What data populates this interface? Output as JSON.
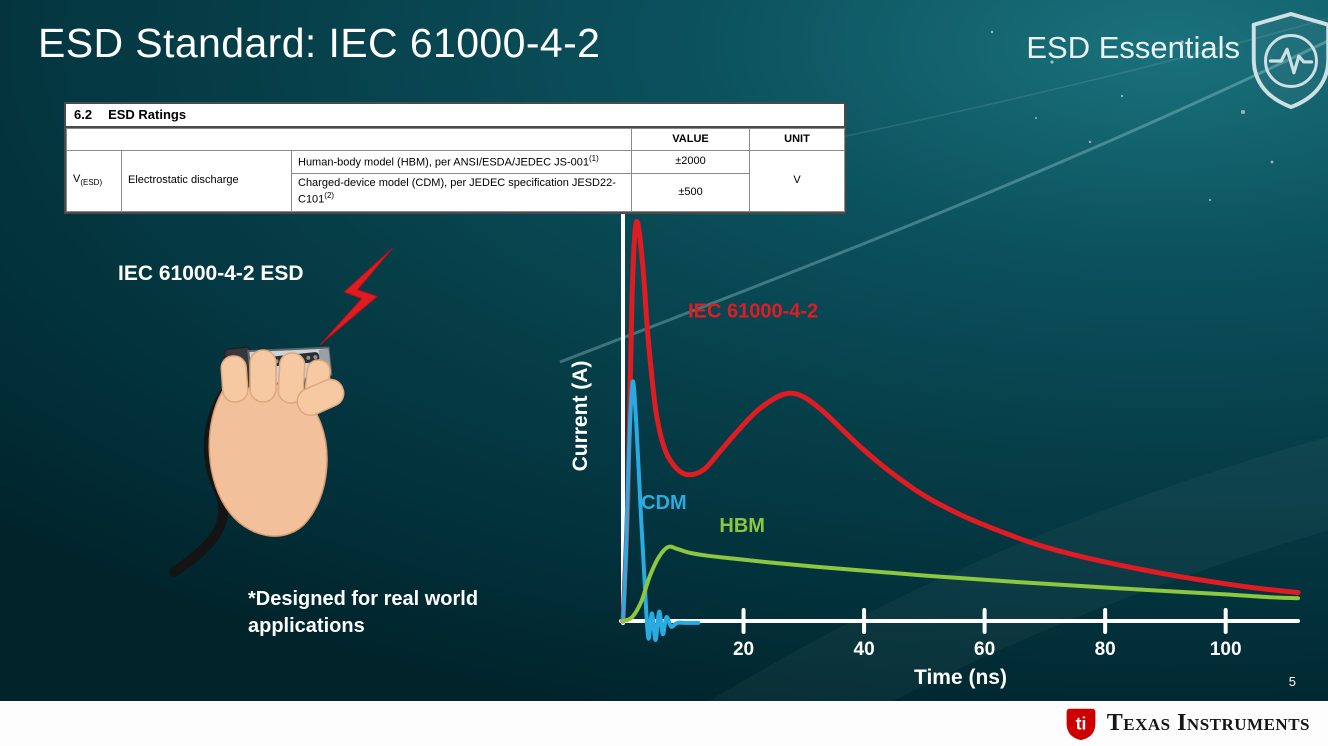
{
  "slide": {
    "title": "ESD Standard: IEC 61000-4-2",
    "series_brand": "ESD Essentials",
    "page_number": "5"
  },
  "ratings_table": {
    "section_heading": "6.2",
    "section_title": "ESD Ratings",
    "col_value": "VALUE",
    "col_unit": "UNIT",
    "param_symbol": "V",
    "param_symbol_sub": "(ESD)",
    "param_name": "Electrostatic discharge",
    "rows": [
      {
        "model": "Human-body model (HBM), per ANSI/ESDA/JEDEC JS-001",
        "ref": "(1)",
        "value": "±2000"
      },
      {
        "model": "Charged-device model (CDM), per JEDEC specification JESD22-C101",
        "ref": "(2)",
        "value": "±500"
      }
    ],
    "unit": "V"
  },
  "illustration": {
    "caption": "IEC 61000-4-2 ESD",
    "note": "*Designed for real world\napplications"
  },
  "footer": {
    "brand": "Texas Instruments"
  },
  "colors": {
    "iec_red": "#e11b22",
    "cdm_blue": "#29abe2",
    "hbm_green": "#8dc63f",
    "background_teal": "#0b515d"
  },
  "chart_data": {
    "type": "line",
    "title": "",
    "xlabel": "Time (ns)",
    "ylabel": "Current (A)",
    "xlim": [
      0,
      112
    ],
    "ylim": [
      0,
      1.08
    ],
    "xticks": [
      20,
      40,
      60,
      80,
      100
    ],
    "yticks": [],
    "grid": false,
    "legend_position": "inline-labels",
    "series": [
      {
        "name": "IEC 61000-4-2",
        "color": "#e11b22",
        "stroke_width": 5,
        "label_pos": [
          10.8,
          0.8
        ],
        "points": [
          [
            0,
            0
          ],
          [
            0.8,
            0.32
          ],
          [
            1.5,
            0.85
          ],
          [
            2.2,
            1.05
          ],
          [
            3.2,
            0.95
          ],
          [
            4.2,
            0.74
          ],
          [
            5.5,
            0.55
          ],
          [
            7,
            0.45
          ],
          [
            9,
            0.4
          ],
          [
            11,
            0.385
          ],
          [
            13.5,
            0.4
          ],
          [
            16,
            0.445
          ],
          [
            19,
            0.5
          ],
          [
            22,
            0.55
          ],
          [
            25,
            0.585
          ],
          [
            27.5,
            0.6
          ],
          [
            30,
            0.59
          ],
          [
            33,
            0.555
          ],
          [
            36,
            0.51
          ],
          [
            40,
            0.45
          ],
          [
            45,
            0.385
          ],
          [
            50,
            0.33
          ],
          [
            56,
            0.28
          ],
          [
            62,
            0.24
          ],
          [
            69,
            0.2
          ],
          [
            76,
            0.17
          ],
          [
            84,
            0.142
          ],
          [
            92,
            0.118
          ],
          [
            100,
            0.098
          ],
          [
            106,
            0.085
          ],
          [
            112,
            0.075
          ]
        ]
      },
      {
        "name": "CDM",
        "color": "#29abe2",
        "stroke_width": 4,
        "label_pos": [
          3.0,
          0.295
        ],
        "points": [
          [
            0,
            0
          ],
          [
            0.5,
            0.18
          ],
          [
            1,
            0.45
          ],
          [
            1.6,
            0.63
          ],
          [
            2.2,
            0.52
          ],
          [
            2.9,
            0.3
          ],
          [
            3.6,
            0.1
          ],
          [
            4.2,
            -0.045
          ],
          [
            4.8,
            0.02
          ],
          [
            5.4,
            -0.05
          ],
          [
            6,
            0.025
          ],
          [
            6.6,
            -0.035
          ],
          [
            7.2,
            0.01
          ],
          [
            8,
            -0.015
          ],
          [
            9,
            -0.005
          ],
          [
            10.5,
            -0.005
          ],
          [
            12.5,
            -0.005
          ]
        ]
      },
      {
        "name": "HBM",
        "color": "#8dc63f",
        "stroke_width": 4,
        "label_pos": [
          16,
          0.235
        ],
        "points": [
          [
            0,
            0
          ],
          [
            1.5,
            0.01
          ],
          [
            3,
            0.05
          ],
          [
            4.5,
            0.12
          ],
          [
            6,
            0.17
          ],
          [
            7.5,
            0.195
          ],
          [
            9,
            0.19
          ],
          [
            11,
            0.18
          ],
          [
            14,
            0.172
          ],
          [
            18,
            0.165
          ],
          [
            24,
            0.155
          ],
          [
            32,
            0.143
          ],
          [
            42,
            0.13
          ],
          [
            54,
            0.115
          ],
          [
            66,
            0.102
          ],
          [
            78,
            0.09
          ],
          [
            90,
            0.079
          ],
          [
            100,
            0.07
          ],
          [
            107,
            0.063
          ],
          [
            112,
            0.06
          ]
        ]
      }
    ]
  }
}
